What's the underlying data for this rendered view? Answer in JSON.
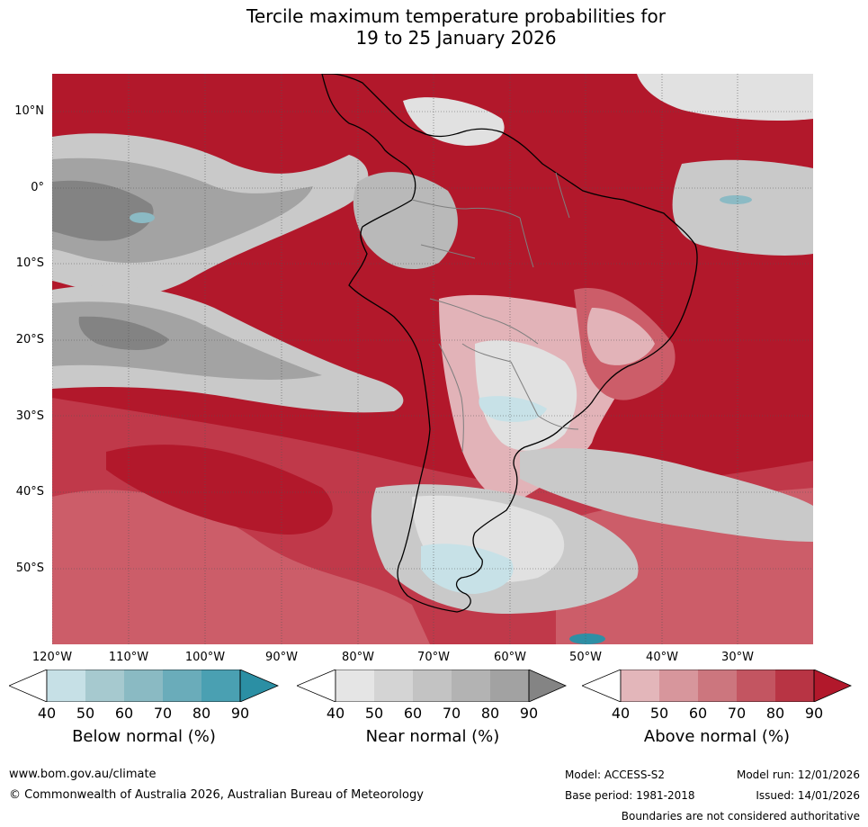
{
  "title": {
    "line1": "Tercile maximum temperature probabilities for",
    "line2": "19 to 25 January 2026"
  },
  "map": {
    "latitude_labels": [
      "10°N",
      "0°",
      "10°S",
      "20°S",
      "30°S",
      "40°S",
      "50°S"
    ],
    "longitude_labels": [
      "120°W",
      "110°W",
      "100°W",
      "90°W",
      "80°W",
      "70°W",
      "60°W",
      "50°W",
      "40°W",
      "30°W"
    ],
    "colors": {
      "above_90": "#b2182b",
      "above_80": "#c0394a",
      "above_70": "#cc5d69",
      "above_60": "#d58891",
      "above_50": "#e2b3b8",
      "near_90": "#838383",
      "near_80": "#a3a3a3",
      "near_70": "#b9b9b9",
      "near_60": "#c9c9c9",
      "near_50": "#e1e1e1",
      "below_50": "#c7e1e7",
      "below_70": "#8bbac4",
      "below_90": "#2e8fa5",
      "coast": "#000000",
      "border": "#7f7f7f"
    }
  },
  "legend": {
    "ticks": [
      "40",
      "50",
      "60",
      "70",
      "80",
      "90"
    ],
    "below": {
      "title": "Below normal (%)",
      "colors": [
        "#ffffff",
        "#c6e0e6",
        "#a6c9cf",
        "#8abac3",
        "#6aacba",
        "#4aa0b2",
        "#2b8fa4"
      ]
    },
    "near": {
      "title": "Near normal (%)",
      "colors": [
        "#ffffff",
        "#e5e5e5",
        "#d4d4d4",
        "#c3c3c3",
        "#b3b3b3",
        "#a2a2a2",
        "#848484"
      ]
    },
    "above": {
      "title": "Above normal (%)",
      "colors": [
        "#ffffff",
        "#e3b6ba",
        "#d7969c",
        "#cc767e",
        "#c35561",
        "#b83444",
        "#b2182b"
      ]
    }
  },
  "footer": {
    "website": "www.bom.gov.au/climate",
    "copyright": "© Commonwealth of Australia 2026, Australian Bureau of Meteorology",
    "model": "Model: ACCESS-S2",
    "model_run": "Model run: 12/01/2026",
    "base_period": "Base period: 1981-2018",
    "issued": "Issued: 14/01/2026",
    "disclaimer": "Boundaries are not considered authoritative"
  }
}
